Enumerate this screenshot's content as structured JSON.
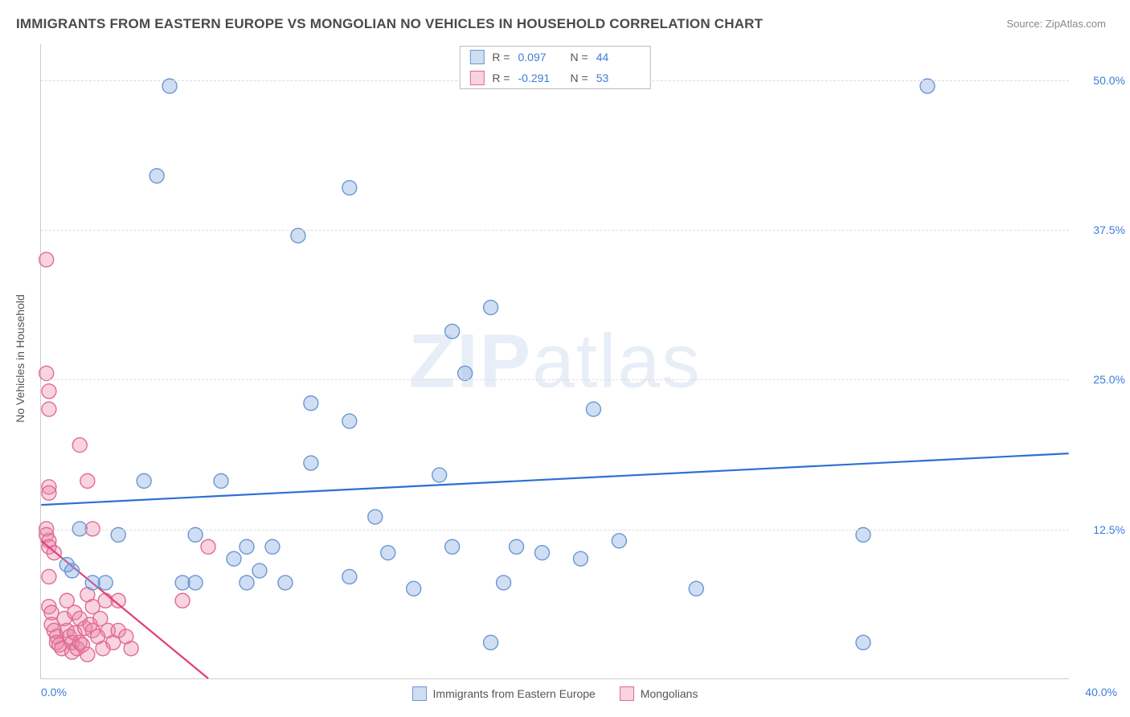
{
  "title": "IMMIGRANTS FROM EASTERN EUROPE VS MONGOLIAN NO VEHICLES IN HOUSEHOLD CORRELATION CHART",
  "source_prefix": "Source: ",
  "source": "ZipAtlas.com",
  "watermark": "ZIPatlas",
  "y_axis_label": "No Vehicles in Household",
  "chart": {
    "type": "scatter",
    "xlim": [
      0,
      40
    ],
    "ylim": [
      0,
      53
    ],
    "y_ticks": [
      12.5,
      25.0,
      37.5,
      50.0
    ],
    "y_tick_labels": [
      "12.5%",
      "25.0%",
      "37.5%",
      "50.0%"
    ],
    "x_tick_left": "0.0%",
    "x_tick_right": "40.0%",
    "grid_color": "#dddddd",
    "background_color": "#ffffff",
    "marker_radius": 9,
    "marker_stroke_width": 1.4,
    "line_width": 2.2,
    "series": [
      {
        "name": "Immigrants from Eastern Europe",
        "fill": "rgba(120,160,220,0.35)",
        "stroke": "#6a97d4",
        "line_color": "#2e6fd4",
        "regression": {
          "x1": 0,
          "y1": 14.5,
          "x2": 40,
          "y2": 18.8
        },
        "stats": {
          "R": "0.097",
          "N": "44"
        },
        "points": [
          [
            5.0,
            49.5
          ],
          [
            4.5,
            42.0
          ],
          [
            3.0,
            12.0
          ],
          [
            6.0,
            12.0
          ],
          [
            1.0,
            9.5
          ],
          [
            1.2,
            9.0
          ],
          [
            1.5,
            12.5
          ],
          [
            2.0,
            8.0
          ],
          [
            2.5,
            8.0
          ],
          [
            4.0,
            16.5
          ],
          [
            5.5,
            8.0
          ],
          [
            6.0,
            8.0
          ],
          [
            7.0,
            16.5
          ],
          [
            7.5,
            10.0
          ],
          [
            8.0,
            8.0
          ],
          [
            8.0,
            11.0
          ],
          [
            8.5,
            9.0
          ],
          [
            9.0,
            11.0
          ],
          [
            9.5,
            8.0
          ],
          [
            10.0,
            37.0
          ],
          [
            10.5,
            23.0
          ],
          [
            10.5,
            18.0
          ],
          [
            12.0,
            41.0
          ],
          [
            12.0,
            8.5
          ],
          [
            12.0,
            21.5
          ],
          [
            13.0,
            13.5
          ],
          [
            13.5,
            10.5
          ],
          [
            14.5,
            7.5
          ],
          [
            15.5,
            17.0
          ],
          [
            16.0,
            29.0
          ],
          [
            16.0,
            11.0
          ],
          [
            16.5,
            25.5
          ],
          [
            17.5,
            31.0
          ],
          [
            17.5,
            3.0
          ],
          [
            18.0,
            8.0
          ],
          [
            18.5,
            11.0
          ],
          [
            19.5,
            10.5
          ],
          [
            21.0,
            10.0
          ],
          [
            21.5,
            22.5
          ],
          [
            22.5,
            11.5
          ],
          [
            25.5,
            7.5
          ],
          [
            32.0,
            12.0
          ],
          [
            32.0,
            3.0
          ],
          [
            34.5,
            49.5
          ]
        ]
      },
      {
        "name": "Mongolians",
        "fill": "rgba(235,130,165,0.35)",
        "stroke": "#e06a93",
        "line_color": "#e23d74",
        "regression": {
          "x1": 0,
          "y1": 11.5,
          "x2": 6.5,
          "y2": 0
        },
        "stats": {
          "R": "-0.291",
          "N": "53"
        },
        "points": [
          [
            0.2,
            35.0
          ],
          [
            0.2,
            25.5
          ],
          [
            0.3,
            24.0
          ],
          [
            0.3,
            22.5
          ],
          [
            0.3,
            16.0
          ],
          [
            0.3,
            15.5
          ],
          [
            0.2,
            12.5
          ],
          [
            0.2,
            12.0
          ],
          [
            0.3,
            11.5
          ],
          [
            0.3,
            11.0
          ],
          [
            0.5,
            10.5
          ],
          [
            0.3,
            8.5
          ],
          [
            0.3,
            6.0
          ],
          [
            0.4,
            5.5
          ],
          [
            0.4,
            4.5
          ],
          [
            0.5,
            4.0
          ],
          [
            0.6,
            3.5
          ],
          [
            0.6,
            3.0
          ],
          [
            0.7,
            2.8
          ],
          [
            0.8,
            2.5
          ],
          [
            0.9,
            5.0
          ],
          [
            1.0,
            6.5
          ],
          [
            1.0,
            4.0
          ],
          [
            1.1,
            3.5
          ],
          [
            1.2,
            3.0
          ],
          [
            1.2,
            2.2
          ],
          [
            1.3,
            3.8
          ],
          [
            1.3,
            5.5
          ],
          [
            1.4,
            2.5
          ],
          [
            1.5,
            19.5
          ],
          [
            1.5,
            5.0
          ],
          [
            1.5,
            3.0
          ],
          [
            1.6,
            2.8
          ],
          [
            1.7,
            4.2
          ],
          [
            1.8,
            16.5
          ],
          [
            1.8,
            7.0
          ],
          [
            1.8,
            2.0
          ],
          [
            1.9,
            4.5
          ],
          [
            2.0,
            12.5
          ],
          [
            2.0,
            6.0
          ],
          [
            2.0,
            4.0
          ],
          [
            2.2,
            3.5
          ],
          [
            2.3,
            5.0
          ],
          [
            2.4,
            2.5
          ],
          [
            2.5,
            6.5
          ],
          [
            2.6,
            4.0
          ],
          [
            2.8,
            3.0
          ],
          [
            3.0,
            6.5
          ],
          [
            3.0,
            4.0
          ],
          [
            3.3,
            3.5
          ],
          [
            3.5,
            2.5
          ],
          [
            5.5,
            6.5
          ],
          [
            6.5,
            11.0
          ]
        ]
      }
    ],
    "legend_top_labels": {
      "R": "R =",
      "N": "N ="
    },
    "legend_bottom": [
      "Immigrants from Eastern Europe",
      "Mongolians"
    ]
  }
}
